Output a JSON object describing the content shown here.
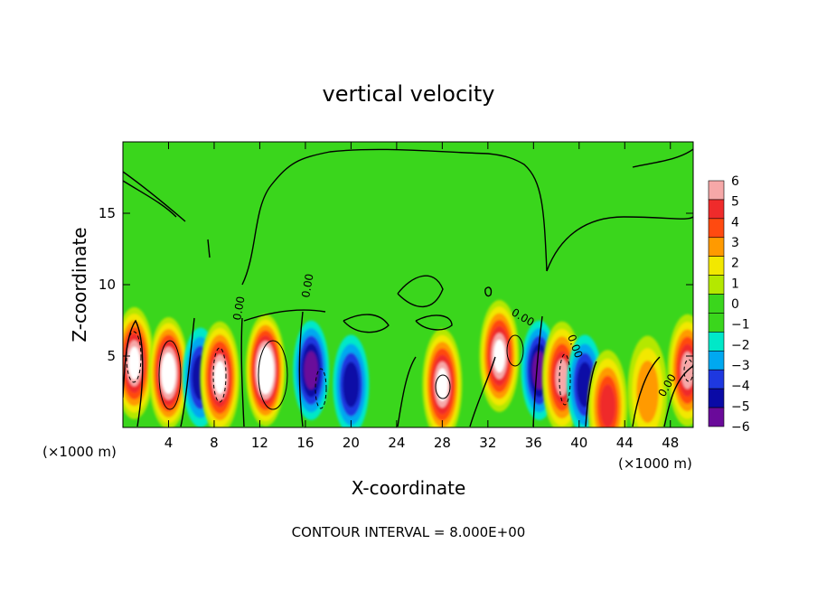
{
  "chart_data": {
    "type": "heatmap",
    "title": "vertical velocity",
    "xlabel": "X-coordinate",
    "ylabel": "Z-coordinate",
    "x_unit_label": "(×1000 m)",
    "x_unit_label_right": "(×1000 m)",
    "xlim": [
      0,
      50
    ],
    "ylim": [
      0,
      20
    ],
    "x_ticks": [
      4,
      8,
      12,
      16,
      20,
      24,
      28,
      32,
      36,
      40,
      44,
      48
    ],
    "x_tick_labels": [
      "4",
      "8",
      "12",
      "16",
      "20",
      "24",
      "28",
      "32",
      "36",
      "40",
      "44",
      "48"
    ],
    "y_ticks": [
      5,
      10,
      15
    ],
    "y_tick_labels": [
      "5",
      "10",
      "15"
    ],
    "colorbar": {
      "levels": [
        6,
        5,
        4,
        3,
        2,
        1,
        0,
        -1,
        -2,
        -3,
        -4,
        -5,
        -6
      ],
      "level_labels": [
        "6",
        "5",
        "4",
        "3",
        "2",
        "1",
        "0",
        "−1",
        "−2",
        "−3",
        "−4",
        "−5",
        "−6"
      ],
      "colors": [
        "#f6a8a8",
        "#ef2b2b",
        "#ff4a10",
        "#ff9a00",
        "#f2e800",
        "#b4e800",
        "#3ad61c",
        "#3ad61c",
        "#00e8c8",
        "#00a8f0",
        "#1e38e0",
        "#0a0aa6",
        "#6a0a9a"
      ]
    },
    "features": [
      {
        "kind": "updraft",
        "x": 1.0,
        "z": 4.5,
        "w": 7
      },
      {
        "kind": "updraft",
        "x": 4.0,
        "z": 3.8,
        "w": 8
      },
      {
        "kind": "downdraft",
        "x": 6.8,
        "z": 3.5,
        "w": -4
      },
      {
        "kind": "updraft",
        "x": 8.5,
        "z": 3.5,
        "w": 7
      },
      {
        "kind": "updraft",
        "x": 12.5,
        "z": 4.0,
        "w": 9
      },
      {
        "kind": "downdraft",
        "x": 16.5,
        "z": 4.0,
        "w": -5
      },
      {
        "kind": "downdraft",
        "x": 20.0,
        "z": 3.0,
        "w": -4
      },
      {
        "kind": "updraft",
        "x": 28.0,
        "z": 3.0,
        "w": 7
      },
      {
        "kind": "updraft",
        "x": 33.0,
        "z": 5.0,
        "w": 7
      },
      {
        "kind": "downdraft",
        "x": 36.5,
        "z": 4.0,
        "w": -5
      },
      {
        "kind": "updraft",
        "x": 38.5,
        "z": 3.5,
        "w": 6
      },
      {
        "kind": "downdraft",
        "x": 40.5,
        "z": 3.0,
        "w": -4
      },
      {
        "kind": "updraft",
        "x": 42.5,
        "z": 1.5,
        "w": 5
      },
      {
        "kind": "updraft",
        "x": 46.0,
        "z": 2.5,
        "w": 3
      },
      {
        "kind": "updraft",
        "x": 49.5,
        "z": 4.0,
        "w": 6
      }
    ],
    "contour_labels": [
      "0.00",
      "0.00",
      "0.00",
      "0.00",
      "0.00"
    ],
    "grid": false,
    "legend": "colorbar-right"
  },
  "footer": {
    "contour_interval_text": "CONTOUR INTERVAL = 8.000E+00"
  }
}
